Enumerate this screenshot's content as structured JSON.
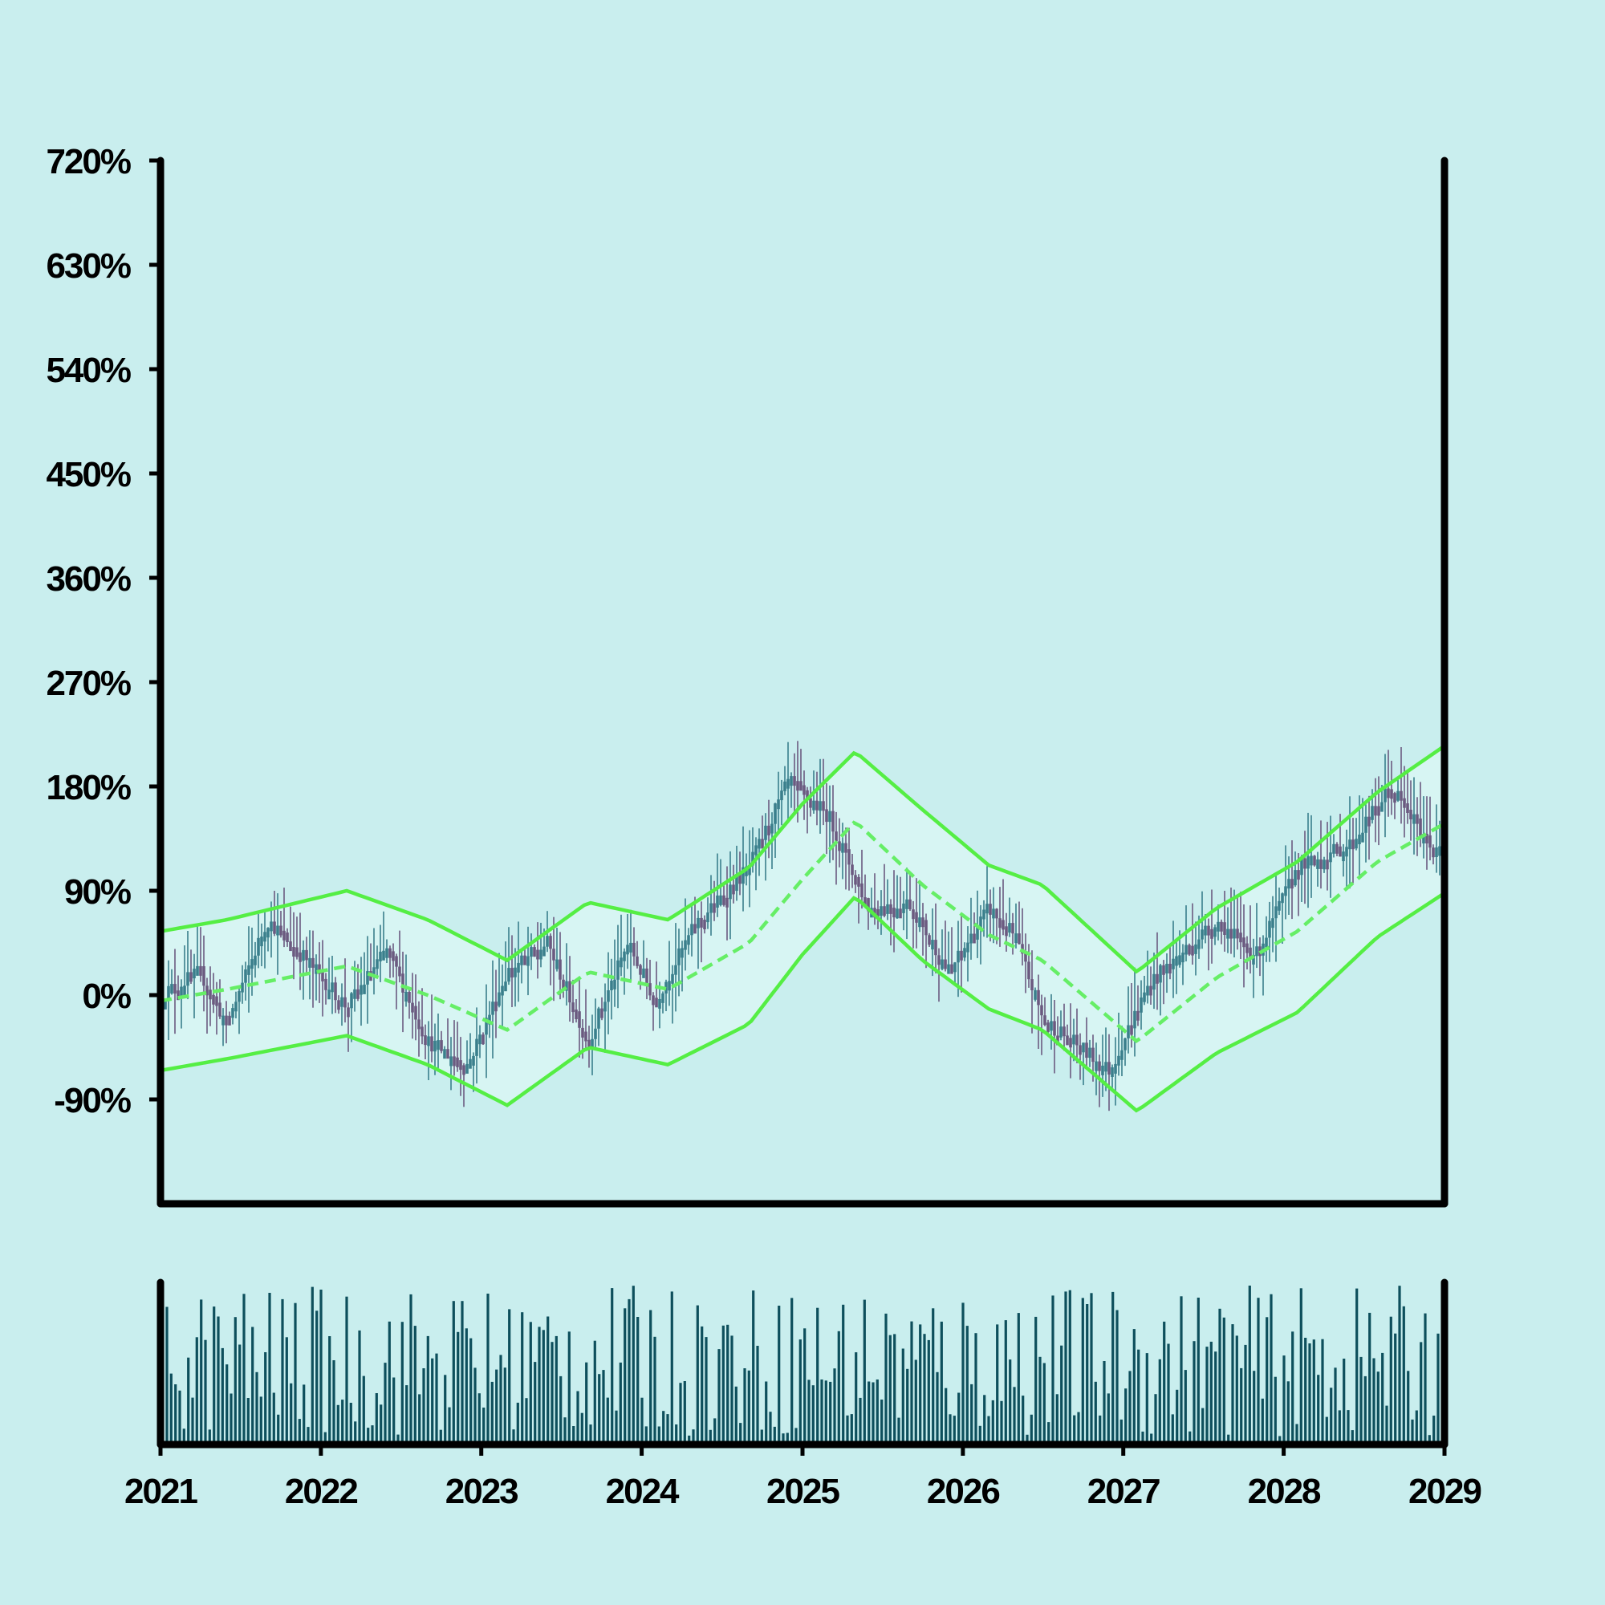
{
  "chart_data": {
    "type": "candlestick",
    "title": "",
    "xlabel": "",
    "ylabel": "",
    "x_range": [
      "2021-01",
      "2029-01"
    ],
    "ylim": [
      -180,
      720
    ],
    "y_ticks": [
      "720%",
      "630%",
      "540%",
      "450%",
      "360%",
      "270%",
      "180%",
      "90%",
      "0%",
      "-90%"
    ],
    "x_ticks": [
      "2021",
      "2022",
      "2023",
      "2024",
      "2025",
      "2026",
      "2027",
      "2028",
      "2029"
    ],
    "grid": false,
    "background_color": "#c9eeee",
    "band_color": "#55ee44",
    "candle_up_color": "#3a7f8c",
    "candle_down_color": "#6b5a80",
    "volume_color": "#0d4f5c",
    "series": [
      {
        "name": "",
        "type": "candlestick",
        "close_path": [
          {
            "date": "2021-01",
            "value": 0
          },
          {
            "date": "2021-04",
            "value": 20
          },
          {
            "date": "2021-06",
            "value": -25
          },
          {
            "date": "2021-09",
            "value": 65
          },
          {
            "date": "2021-12",
            "value": 30
          },
          {
            "date": "2022-03",
            "value": -10
          },
          {
            "date": "2022-06",
            "value": 40
          },
          {
            "date": "2022-09",
            "value": -40
          },
          {
            "date": "2022-12",
            "value": -60
          },
          {
            "date": "2023-03",
            "value": 20
          },
          {
            "date": "2023-06",
            "value": 45
          },
          {
            "date": "2023-09",
            "value": -40
          },
          {
            "date": "2023-12",
            "value": 45
          },
          {
            "date": "2024-02",
            "value": -5
          },
          {
            "date": "2024-05",
            "value": 60
          },
          {
            "date": "2024-09",
            "value": 110
          },
          {
            "date": "2024-12",
            "value": 185
          },
          {
            "date": "2025-03",
            "value": 155
          },
          {
            "date": "2025-06",
            "value": 75
          },
          {
            "date": "2025-09",
            "value": 80
          },
          {
            "date": "2025-12",
            "value": 20
          },
          {
            "date": "2026-03",
            "value": 75
          },
          {
            "date": "2026-05",
            "value": 50
          },
          {
            "date": "2026-07",
            "value": -20
          },
          {
            "date": "2026-12",
            "value": -65
          },
          {
            "date": "2027-03",
            "value": 10
          },
          {
            "date": "2027-08",
            "value": 65
          },
          {
            "date": "2027-11",
            "value": 35
          },
          {
            "date": "2028-02",
            "value": 110
          },
          {
            "date": "2028-06",
            "value": 130
          },
          {
            "date": "2028-09",
            "value": 180
          },
          {
            "date": "2028-12",
            "value": 130
          }
        ]
      },
      {
        "name": "",
        "type": "line",
        "style": "dashed",
        "points": [
          {
            "date": "2021-01",
            "value": -5
          },
          {
            "date": "2021-06",
            "value": 5
          },
          {
            "date": "2022-03",
            "value": 25
          },
          {
            "date": "2022-09",
            "value": 0
          },
          {
            "date": "2023-03",
            "value": -30
          },
          {
            "date": "2023-09",
            "value": 20
          },
          {
            "date": "2024-03",
            "value": 5
          },
          {
            "date": "2024-09",
            "value": 45
          },
          {
            "date": "2025-01",
            "value": 100
          },
          {
            "date": "2025-05",
            "value": 150
          },
          {
            "date": "2025-10",
            "value": 95
          },
          {
            "date": "2026-03",
            "value": 52
          },
          {
            "date": "2026-07",
            "value": 30
          },
          {
            "date": "2027-02",
            "value": -40
          },
          {
            "date": "2027-08",
            "value": 15
          },
          {
            "date": "2028-02",
            "value": 55
          },
          {
            "date": "2028-08",
            "value": 115
          },
          {
            "date": "2029-01",
            "value": 148
          }
        ]
      },
      {
        "name": "",
        "type": "line",
        "style": "solid",
        "points": [
          {
            "date": "2021-01",
            "value": 55
          },
          {
            "date": "2021-06",
            "value": 65
          },
          {
            "date": "2022-03",
            "value": 90
          },
          {
            "date": "2022-09",
            "value": 65
          },
          {
            "date": "2023-03",
            "value": 30
          },
          {
            "date": "2023-09",
            "value": 80
          },
          {
            "date": "2024-03",
            "value": 65
          },
          {
            "date": "2024-09",
            "value": 110
          },
          {
            "date": "2025-01",
            "value": 165
          },
          {
            "date": "2025-05",
            "value": 210
          },
          {
            "date": "2025-10",
            "value": 160
          },
          {
            "date": "2026-03",
            "value": 112
          },
          {
            "date": "2026-07",
            "value": 95
          },
          {
            "date": "2027-02",
            "value": 20
          },
          {
            "date": "2027-08",
            "value": 75
          },
          {
            "date": "2028-02",
            "value": 115
          },
          {
            "date": "2028-08",
            "value": 175
          },
          {
            "date": "2029-01",
            "value": 215
          }
        ]
      },
      {
        "name": "",
        "type": "line",
        "style": "solid",
        "points": [
          {
            "date": "2021-01",
            "value": -65
          },
          {
            "date": "2021-06",
            "value": -55
          },
          {
            "date": "2022-03",
            "value": -35
          },
          {
            "date": "2022-09",
            "value": -60
          },
          {
            "date": "2023-03",
            "value": -95
          },
          {
            "date": "2023-09",
            "value": -45
          },
          {
            "date": "2024-03",
            "value": -60
          },
          {
            "date": "2024-09",
            "value": -25
          },
          {
            "date": "2025-01",
            "value": 35
          },
          {
            "date": "2025-05",
            "value": 85
          },
          {
            "date": "2025-10",
            "value": 30
          },
          {
            "date": "2026-03",
            "value": -12
          },
          {
            "date": "2026-07",
            "value": -30
          },
          {
            "date": "2027-02",
            "value": -100
          },
          {
            "date": "2027-08",
            "value": -50
          },
          {
            "date": "2028-02",
            "value": -15
          },
          {
            "date": "2028-08",
            "value": 50
          },
          {
            "date": "2029-01",
            "value": 88
          }
        ]
      }
    ],
    "volume": {
      "ylim": [
        0,
        1
      ],
      "note_values": "relative heights 0-1"
    }
  }
}
